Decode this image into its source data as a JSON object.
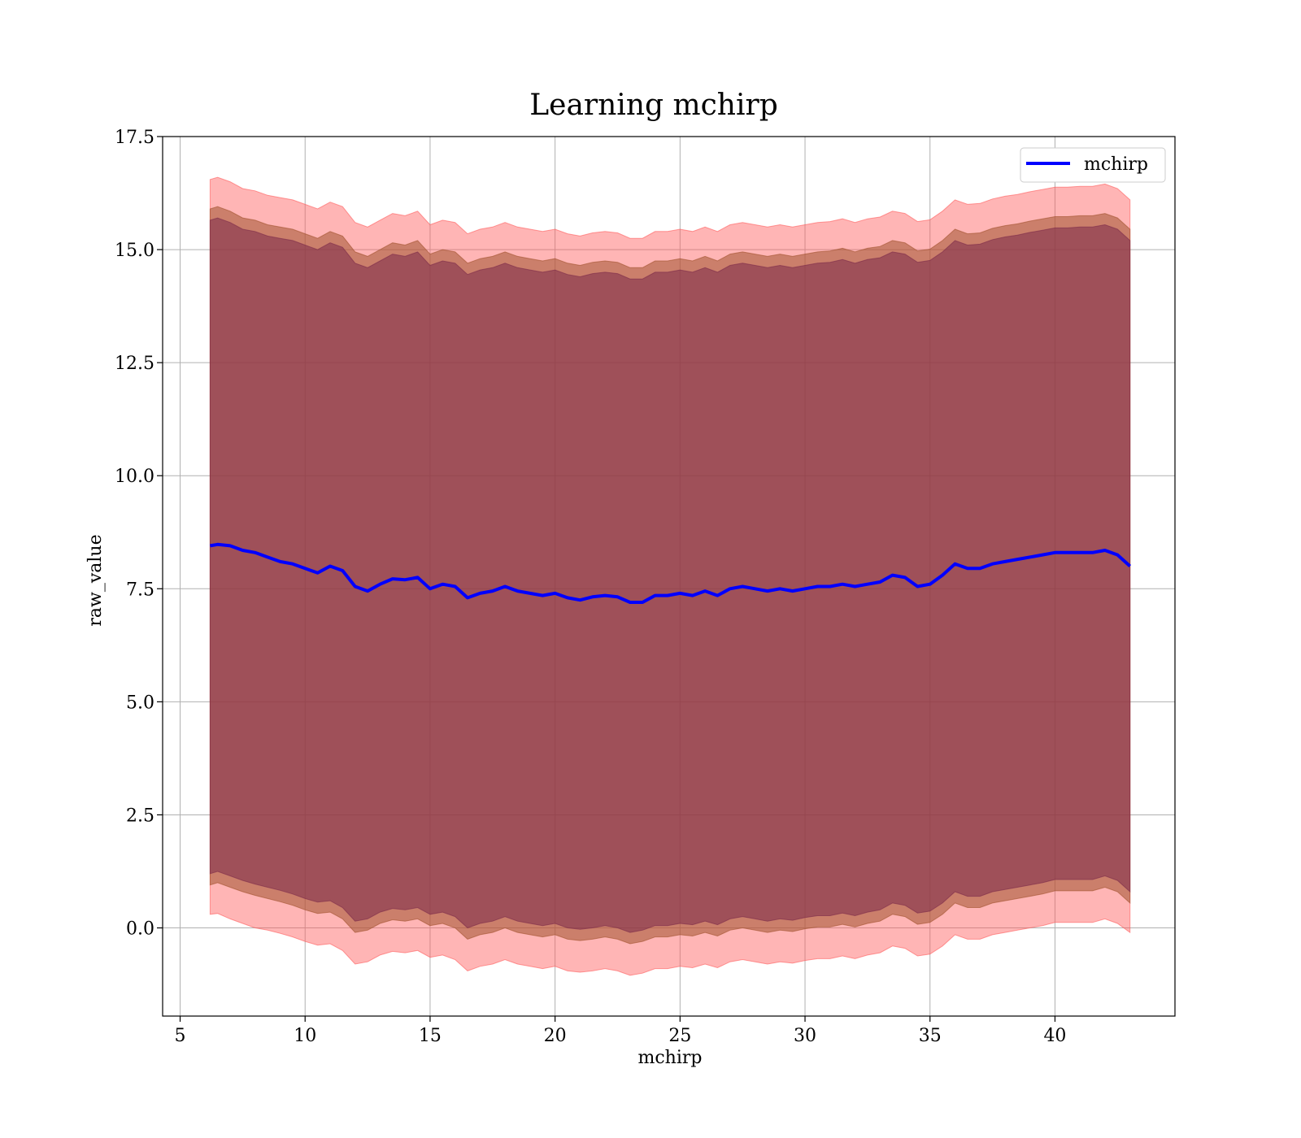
{
  "chart_data": {
    "type": "line",
    "title": "Learning mchirp",
    "xlabel": "mchirp",
    "ylabel": "raw_value",
    "xlim": [
      4.3,
      44.8
    ],
    "ylim": [
      -1.95,
      17.5
    ],
    "xticks": [
      5,
      10,
      15,
      20,
      25,
      30,
      35,
      40
    ],
    "xtick_labels": [
      "5",
      "10",
      "15",
      "20",
      "25",
      "30",
      "35",
      "40"
    ],
    "yticks": [
      0.0,
      2.5,
      5.0,
      7.5,
      10.0,
      12.5,
      15.0,
      17.5
    ],
    "ytick_labels": [
      "0.0",
      "2.5",
      "5.0",
      "7.5",
      "10.0",
      "12.5",
      "15.0",
      "17.5"
    ],
    "grid": true,
    "legend": {
      "position": "upper-right",
      "entries": [
        "mchirp"
      ]
    },
    "series": [
      {
        "name": "mchirp",
        "color": "#0000ff",
        "x": [
          6.2,
          6.5,
          7.0,
          7.5,
          8.0,
          8.5,
          9.0,
          9.5,
          10.0,
          10.5,
          11.0,
          11.5,
          12.0,
          12.5,
          13.0,
          13.5,
          14.0,
          14.5,
          15.0,
          15.5,
          16.0,
          16.5,
          17.0,
          17.5,
          18.0,
          18.5,
          19.0,
          19.5,
          20.0,
          20.5,
          21.0,
          21.5,
          22.0,
          22.5,
          23.0,
          23.5,
          24.0,
          24.5,
          25.0,
          25.5,
          26.0,
          26.5,
          27.0,
          27.5,
          28.0,
          28.5,
          29.0,
          29.5,
          30.0,
          30.5,
          31.0,
          31.5,
          32.0,
          32.5,
          33.0,
          33.5,
          34.0,
          34.5,
          35.0,
          35.5,
          36.0,
          36.5,
          37.0,
          37.5,
          38.0,
          38.5,
          39.0,
          39.5,
          40.0,
          40.5,
          41.0,
          41.5,
          42.0,
          42.5,
          43.0
        ],
        "values": [
          8.45,
          8.48,
          8.45,
          8.35,
          8.3,
          8.2,
          8.1,
          8.05,
          7.95,
          7.85,
          8.0,
          7.9,
          7.55,
          7.45,
          7.6,
          7.72,
          7.7,
          7.75,
          7.5,
          7.6,
          7.55,
          7.3,
          7.4,
          7.45,
          7.55,
          7.45,
          7.4,
          7.35,
          7.4,
          7.3,
          7.25,
          7.32,
          7.35,
          7.32,
          7.2,
          7.2,
          7.35,
          7.35,
          7.4,
          7.35,
          7.45,
          7.35,
          7.5,
          7.55,
          7.5,
          7.45,
          7.5,
          7.45,
          7.5,
          7.55,
          7.55,
          7.6,
          7.55,
          7.6,
          7.65,
          7.8,
          7.75,
          7.55,
          7.6,
          7.8,
          8.05,
          7.95,
          7.95,
          8.05,
          8.1,
          8.15,
          8.2,
          8.25,
          8.3,
          8.3,
          8.3,
          8.3,
          8.35,
          8.25,
          8.0
        ]
      }
    ],
    "bands": [
      {
        "name": "",
        "color": "#ff5a5a",
        "opacity": 0.45,
        "lower": [
          0.3,
          0.32,
          0.2,
          0.1,
          0.0,
          -0.05,
          -0.12,
          -0.2,
          -0.3,
          -0.38,
          -0.35,
          -0.5,
          -0.8,
          -0.75,
          -0.6,
          -0.52,
          -0.55,
          -0.5,
          -0.65,
          -0.6,
          -0.7,
          -0.95,
          -0.85,
          -0.8,
          -0.7,
          -0.8,
          -0.85,
          -0.9,
          -0.85,
          -0.95,
          -0.98,
          -0.95,
          -0.9,
          -0.95,
          -1.05,
          -1.0,
          -0.9,
          -0.9,
          -0.85,
          -0.88,
          -0.8,
          -0.88,
          -0.75,
          -0.7,
          -0.75,
          -0.8,
          -0.75,
          -0.78,
          -0.72,
          -0.68,
          -0.68,
          -0.62,
          -0.68,
          -0.6,
          -0.55,
          -0.4,
          -0.45,
          -0.62,
          -0.58,
          -0.4,
          -0.15,
          -0.25,
          -0.25,
          -0.15,
          -0.1,
          -0.05,
          0.0,
          0.05,
          0.12,
          0.12,
          0.12,
          0.12,
          0.2,
          0.1,
          -0.1
        ],
        "upper": [
          16.55,
          16.6,
          16.5,
          16.35,
          16.3,
          16.2,
          16.15,
          16.1,
          16.0,
          15.9,
          16.05,
          15.95,
          15.6,
          15.5,
          15.65,
          15.8,
          15.75,
          15.85,
          15.55,
          15.65,
          15.6,
          15.35,
          15.45,
          15.5,
          15.6,
          15.5,
          15.45,
          15.4,
          15.45,
          15.35,
          15.3,
          15.37,
          15.4,
          15.37,
          15.25,
          15.25,
          15.4,
          15.4,
          15.45,
          15.4,
          15.5,
          15.4,
          15.55,
          15.6,
          15.55,
          15.5,
          15.55,
          15.5,
          15.55,
          15.6,
          15.62,
          15.68,
          15.6,
          15.68,
          15.72,
          15.85,
          15.8,
          15.62,
          15.66,
          15.85,
          16.1,
          16.0,
          16.02,
          16.12,
          16.18,
          16.22,
          16.28,
          16.33,
          16.38,
          16.38,
          16.4,
          16.4,
          16.45,
          16.35,
          16.1
        ]
      },
      {
        "name": "",
        "color": "#a0522d",
        "opacity": 0.55,
        "lower": [
          0.95,
          1.0,
          0.9,
          0.8,
          0.72,
          0.65,
          0.58,
          0.5,
          0.4,
          0.32,
          0.35,
          0.2,
          -0.1,
          -0.05,
          0.1,
          0.18,
          0.15,
          0.2,
          0.05,
          0.1,
          0.0,
          -0.25,
          -0.15,
          -0.1,
          0.0,
          -0.1,
          -0.15,
          -0.2,
          -0.15,
          -0.25,
          -0.28,
          -0.25,
          -0.2,
          -0.25,
          -0.35,
          -0.3,
          -0.2,
          -0.2,
          -0.15,
          -0.18,
          -0.1,
          -0.18,
          -0.05,
          0.0,
          -0.05,
          -0.1,
          -0.05,
          -0.08,
          -0.02,
          0.02,
          0.02,
          0.08,
          0.02,
          0.1,
          0.15,
          0.3,
          0.25,
          0.08,
          0.12,
          0.3,
          0.55,
          0.45,
          0.45,
          0.55,
          0.6,
          0.65,
          0.7,
          0.75,
          0.82,
          0.82,
          0.82,
          0.82,
          0.9,
          0.8,
          0.55
        ],
        "upper": [
          15.9,
          15.95,
          15.85,
          15.7,
          15.65,
          15.55,
          15.5,
          15.45,
          15.35,
          15.25,
          15.4,
          15.3,
          14.95,
          14.85,
          15.0,
          15.15,
          15.1,
          15.2,
          14.9,
          15.0,
          14.95,
          14.7,
          14.8,
          14.85,
          14.95,
          14.85,
          14.8,
          14.75,
          14.8,
          14.7,
          14.65,
          14.72,
          14.75,
          14.72,
          14.6,
          14.6,
          14.75,
          14.75,
          14.8,
          14.75,
          14.85,
          14.75,
          14.9,
          14.95,
          14.9,
          14.85,
          14.9,
          14.85,
          14.9,
          14.95,
          14.97,
          15.03,
          14.95,
          15.03,
          15.07,
          15.2,
          15.15,
          14.97,
          15.01,
          15.2,
          15.45,
          15.35,
          15.37,
          15.47,
          15.53,
          15.57,
          15.63,
          15.68,
          15.73,
          15.73,
          15.75,
          15.75,
          15.8,
          15.7,
          15.45
        ]
      },
      {
        "name": "",
        "color": "#7b2a4a",
        "opacity": 0.55,
        "lower": [
          1.2,
          1.25,
          1.15,
          1.05,
          0.97,
          0.9,
          0.83,
          0.75,
          0.65,
          0.57,
          0.6,
          0.45,
          0.15,
          0.2,
          0.35,
          0.43,
          0.4,
          0.45,
          0.3,
          0.35,
          0.25,
          0.0,
          0.1,
          0.15,
          0.25,
          0.15,
          0.1,
          0.05,
          0.1,
          0.0,
          -0.03,
          0.0,
          0.05,
          0.0,
          -0.1,
          -0.05,
          0.05,
          0.05,
          0.1,
          0.07,
          0.15,
          0.07,
          0.2,
          0.25,
          0.2,
          0.15,
          0.2,
          0.17,
          0.23,
          0.27,
          0.27,
          0.33,
          0.27,
          0.35,
          0.4,
          0.55,
          0.5,
          0.33,
          0.37,
          0.55,
          0.8,
          0.7,
          0.7,
          0.8,
          0.85,
          0.9,
          0.95,
          1.0,
          1.07,
          1.07,
          1.07,
          1.07,
          1.15,
          1.05,
          0.8
        ],
        "upper": [
          15.65,
          15.7,
          15.6,
          15.45,
          15.4,
          15.3,
          15.25,
          15.2,
          15.1,
          15.0,
          15.15,
          15.05,
          14.7,
          14.6,
          14.75,
          14.9,
          14.85,
          14.95,
          14.65,
          14.75,
          14.7,
          14.45,
          14.55,
          14.6,
          14.7,
          14.6,
          14.55,
          14.5,
          14.55,
          14.45,
          14.4,
          14.47,
          14.5,
          14.47,
          14.35,
          14.35,
          14.5,
          14.5,
          14.55,
          14.5,
          14.6,
          14.5,
          14.65,
          14.7,
          14.65,
          14.6,
          14.65,
          14.6,
          14.65,
          14.7,
          14.72,
          14.78,
          14.7,
          14.78,
          14.82,
          14.95,
          14.9,
          14.72,
          14.76,
          14.95,
          15.2,
          15.1,
          15.12,
          15.22,
          15.28,
          15.32,
          15.38,
          15.43,
          15.48,
          15.48,
          15.5,
          15.5,
          15.55,
          15.45,
          15.2
        ]
      }
    ]
  }
}
